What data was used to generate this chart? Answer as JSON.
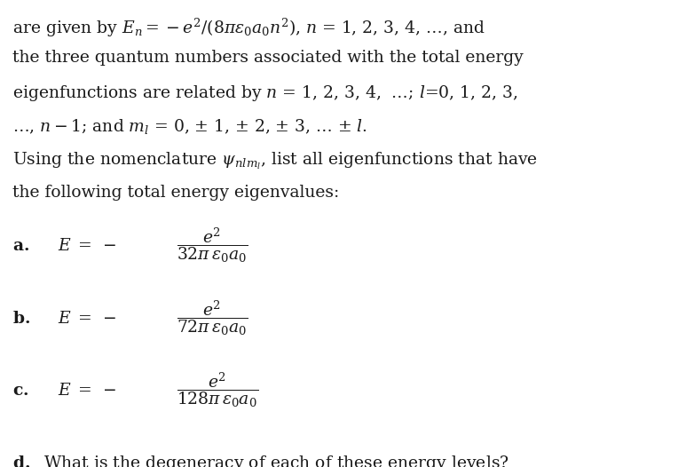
{
  "background_color": "#ffffff",
  "figsize": [
    7.64,
    5.26
  ],
  "dpi": 100,
  "font_family": "DejaVu Serif",
  "fontsize": 13.5,
  "color": "#1a1a1a",
  "para_lines": [
    "are given by $E_n = -e^2/(8\\pi\\varepsilon_0 a_0 n^2)$, $n$ = 1, 2, 3, 4, $\\ldots$, and",
    "the three quantum numbers associated with the total energy",
    "eigenfunctions are related by $n$ = 1, 2, 3, 4,  $\\ldots$; $l$=0, 1, 2, 3,",
    "$\\ldots$, $n-1$; and $m_l$ = 0, $\\pm$ 1, $\\pm$ 2, $\\pm$ 3, $\\ldots$ $\\pm$ $l$.",
    "Using the nomenclature $\\psi_{nlm_l}$, list all eigenfunctions that have",
    "the following total energy eigenvalues:"
  ],
  "fraction_items": [
    {
      "label": "a.",
      "num": "e^2",
      "den": "32\\pi\\,\\varepsilon_0 a_0"
    },
    {
      "label": "b.",
      "num": "e^2",
      "den": "72\\pi\\,\\varepsilon_0 a_0"
    },
    {
      "label": "c.",
      "num": "e^2",
      "den": "128\\pi\\,\\varepsilon_0 a_0"
    }
  ],
  "line_d": "What is the degeneracy of each of these energy levels?"
}
